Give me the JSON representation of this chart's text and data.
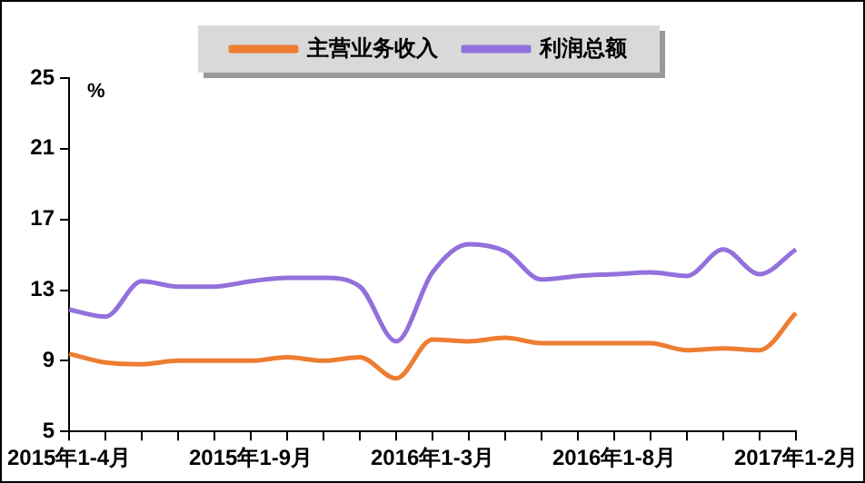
{
  "chart_data": {
    "type": "line",
    "ylabel": "%",
    "categories": [
      "2015年1-4月",
      null,
      null,
      null,
      null,
      "2015年1-9月",
      null,
      null,
      null,
      null,
      "2016年1-3月",
      null,
      null,
      null,
      null,
      "2016年1-8月",
      null,
      null,
      null,
      null,
      "2017年1-2月"
    ],
    "series": [
      {
        "name": "主营业务收入",
        "color": "#ed7d31",
        "values": [
          9.4,
          8.9,
          8.8,
          9.0,
          9.0,
          9.0,
          9.2,
          9.0,
          9.2,
          8.0,
          10.2,
          10.1,
          10.3,
          10.0,
          10.0,
          10.0,
          10.0,
          9.6,
          9.7,
          9.6,
          11.7
        ]
      },
      {
        "name": "利润总额",
        "color": "#9370db",
        "values": [
          11.9,
          11.5,
          13.5,
          13.2,
          13.2,
          13.5,
          13.7,
          13.7,
          13.2,
          10.1,
          14.0,
          15.6,
          15.2,
          13.6,
          13.8,
          13.9,
          14.0,
          13.8,
          15.3,
          13.9,
          15.3
        ]
      }
    ],
    "ylim": [
      5,
      25
    ],
    "yticks": [
      5,
      9,
      13,
      17,
      21,
      25
    ],
    "grid": false,
    "legend": "top",
    "marker": "none",
    "line_style": "solid"
  }
}
